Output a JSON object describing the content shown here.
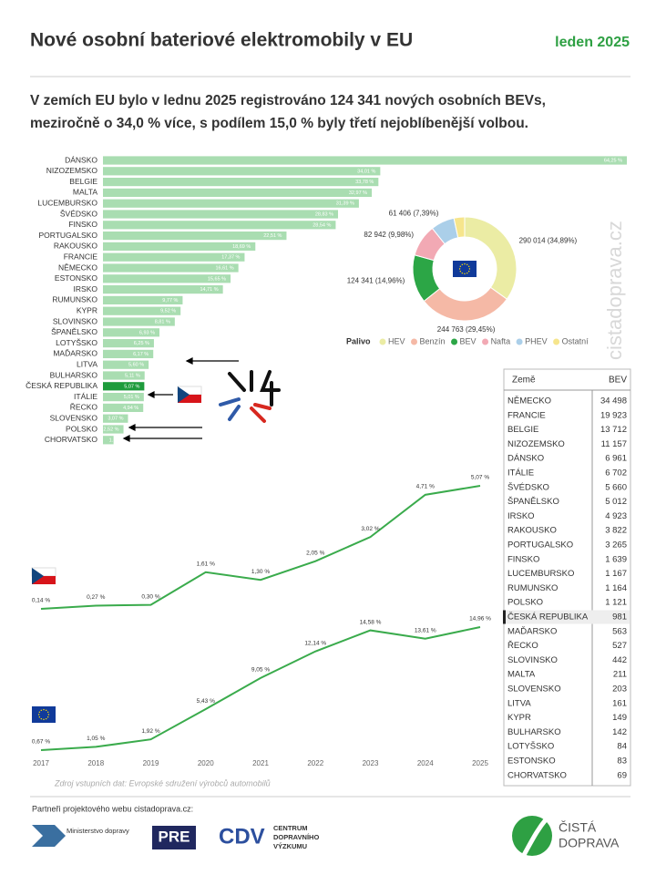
{
  "header": {
    "title": "Nové osobní bateriové elektromobily v EU",
    "date": "leden 2025",
    "subtitle": [
      "V zemích EU bylo v lednu 2025 registrováno 124 341 nových osobních BEVs,",
      "meziročně o 34,0 % více, s podílem 15,0 % byly třetí nejoblíbenější volbou."
    ]
  },
  "watermark": "cistadoprava.cz",
  "chart_data": [
    {
      "type": "hbar",
      "color": "#a9ddb1",
      "highlight_index": 21,
      "highlight_color": "#1e9b3c",
      "categories": [
        "DÁNSKO",
        "NIZOZEMSKO",
        "BELGIE",
        "MALTA",
        "LUCEMBURSKO",
        "ŠVÉDSKO",
        "FINSKO",
        "PORTUGALSKO",
        "RAKOUSKO",
        "FRANCIE",
        "NĚMECKO",
        "ESTONSKO",
        "IRSKO",
        "RUMUNSKO",
        "KYPR",
        "SLOVINSKO",
        "ŠPANĚLSKO",
        "LOTYŠSKO",
        "MAĎARSKO",
        "LITVA",
        "BULHARSKO",
        "ČESKÁ REPUBLIKA",
        "ITÁLIE",
        "ŘECKO",
        "SLOVENSKO",
        "POLSKO",
        "CHORVATSKO"
      ],
      "values": [
        64.25,
        34.01,
        33.78,
        32.97,
        31.39,
        28.83,
        28.54,
        22.51,
        18.69,
        17.37,
        16.61,
        15.65,
        14.71,
        9.77,
        9.52,
        8.81,
        6.93,
        6.25,
        6.17,
        5.6,
        5.11,
        5.07,
        5.01,
        4.94,
        3.07,
        2.52,
        1.3
      ],
      "value_labels": [
        "64,25 %",
        "34,01 %",
        "33,78 %",
        "32,97 %",
        "31,39 %",
        "28,83 %",
        "28,54 %",
        "22,51 %",
        "18,69 %",
        "17,37 %",
        "16,61 %",
        "15,65 %",
        "14,71 %",
        "9,77 %",
        "9,52 %",
        "8,81 %",
        "6,93 %",
        "6,25 %",
        "6,17 %",
        "5,60 %",
        "5,11 %",
        "5,07 %",
        "5,01 %",
        "4,94 %",
        "3,07 %",
        "2,52 %",
        "1…"
      ]
    },
    {
      "type": "donut",
      "legend_title": "Palivo",
      "categories": [
        "HEV",
        "Benzín",
        "BEV",
        "Nafta",
        "PHEV",
        "Ostatní"
      ],
      "values": [
        290014,
        244763,
        124341,
        82942,
        61406,
        27700
      ],
      "value_labels": [
        "290 014 (34,89%)",
        "244 763 (29,45%)",
        "124 341 (14,96%)",
        "82 942 (9,98%)",
        "61 406 (7,39%)",
        null
      ],
      "colors": [
        "#ebeca4",
        "#f5b9a6",
        "#2ca646",
        "#f2a9b4",
        "#abcfe9",
        "#f6e58c"
      ]
    },
    {
      "type": "line",
      "categories": [
        "2017",
        "2018",
        "2019",
        "2020",
        "2021",
        "2022",
        "2023",
        "2024",
        "2025"
      ],
      "series": [
        {
          "color": "#3aab4c",
          "values": [
            0.14,
            0.27,
            0.3,
            1.61,
            1.3,
            2.05,
            3.02,
            4.71,
            5.07
          ],
          "value_labels": [
            "0,14 %",
            "0,27 %",
            "0,30 %",
            "1,61 %",
            "1,30 %",
            "2,05 %",
            "3,02 %",
            "4,71 %",
            "5,07 %"
          ]
        },
        {
          "color": "#3aab4c",
          "values": [
            0.67,
            1.05,
            1.92,
            5.43,
            9.05,
            12.14,
            14.58,
            13.61,
            14.96
          ],
          "value_labels": [
            "0,67 %",
            "1,05 %",
            "1,92 %",
            "5,43 %",
            "9,05 %",
            "12,14 %",
            "14,58 %",
            "13,61 %",
            "14,96 %"
          ]
        }
      ]
    }
  ],
  "source": "Zdroj vstupních dat: Evropské sdružení výrobců automobilů",
  "table": {
    "columns": [
      "Země",
      "BEV"
    ],
    "highlight_row": 15,
    "rows": [
      [
        "NĚMECKO",
        "34 498"
      ],
      [
        "FRANCIE",
        "19 923"
      ],
      [
        "BELGIE",
        "13 712"
      ],
      [
        "NIZOZEMSKO",
        "11 157"
      ],
      [
        "DÁNSKO",
        "6 961"
      ],
      [
        "ITÁLIE",
        "6 702"
      ],
      [
        "ŠVÉDSKO",
        "5 660"
      ],
      [
        "ŠPANĚLSKO",
        "5 012"
      ],
      [
        "IRSKO",
        "4 923"
      ],
      [
        "RAKOUSKO",
        "3 822"
      ],
      [
        "PORTUGALSKO",
        "3 265"
      ],
      [
        "FINSKO",
        "1 639"
      ],
      [
        "LUCEMBURSKO",
        "1 167"
      ],
      [
        "RUMUNSKO",
        "1 164"
      ],
      [
        "POLSKO",
        "1 121"
      ],
      [
        "ČESKÁ REPUBLIKA",
        "981"
      ],
      [
        "MAĎARSKO",
        "563"
      ],
      [
        "ŘECKO",
        "527"
      ],
      [
        "SLOVINSKO",
        "442"
      ],
      [
        "MALTA",
        "211"
      ],
      [
        "SLOVENSKO",
        "203"
      ],
      [
        "LITVA",
        "161"
      ],
      [
        "KYPR",
        "149"
      ],
      [
        "BULHARSKO",
        "142"
      ],
      [
        "LOTYŠSKO",
        "84"
      ],
      [
        "ESTONSKO",
        "83"
      ],
      [
        "CHORVATSKO",
        "69"
      ]
    ]
  },
  "footer": {
    "text": "Partneři projektového webu cistadoprava.cz:",
    "ministry": "Ministerstvo dopravy",
    "pre": "PRE",
    "cdv": [
      "CENTRUM",
      "DOPRAVNÍHO",
      "VÝZKUMU"
    ],
    "brand": [
      "ČISTÁ",
      "DOPRAVA"
    ]
  }
}
